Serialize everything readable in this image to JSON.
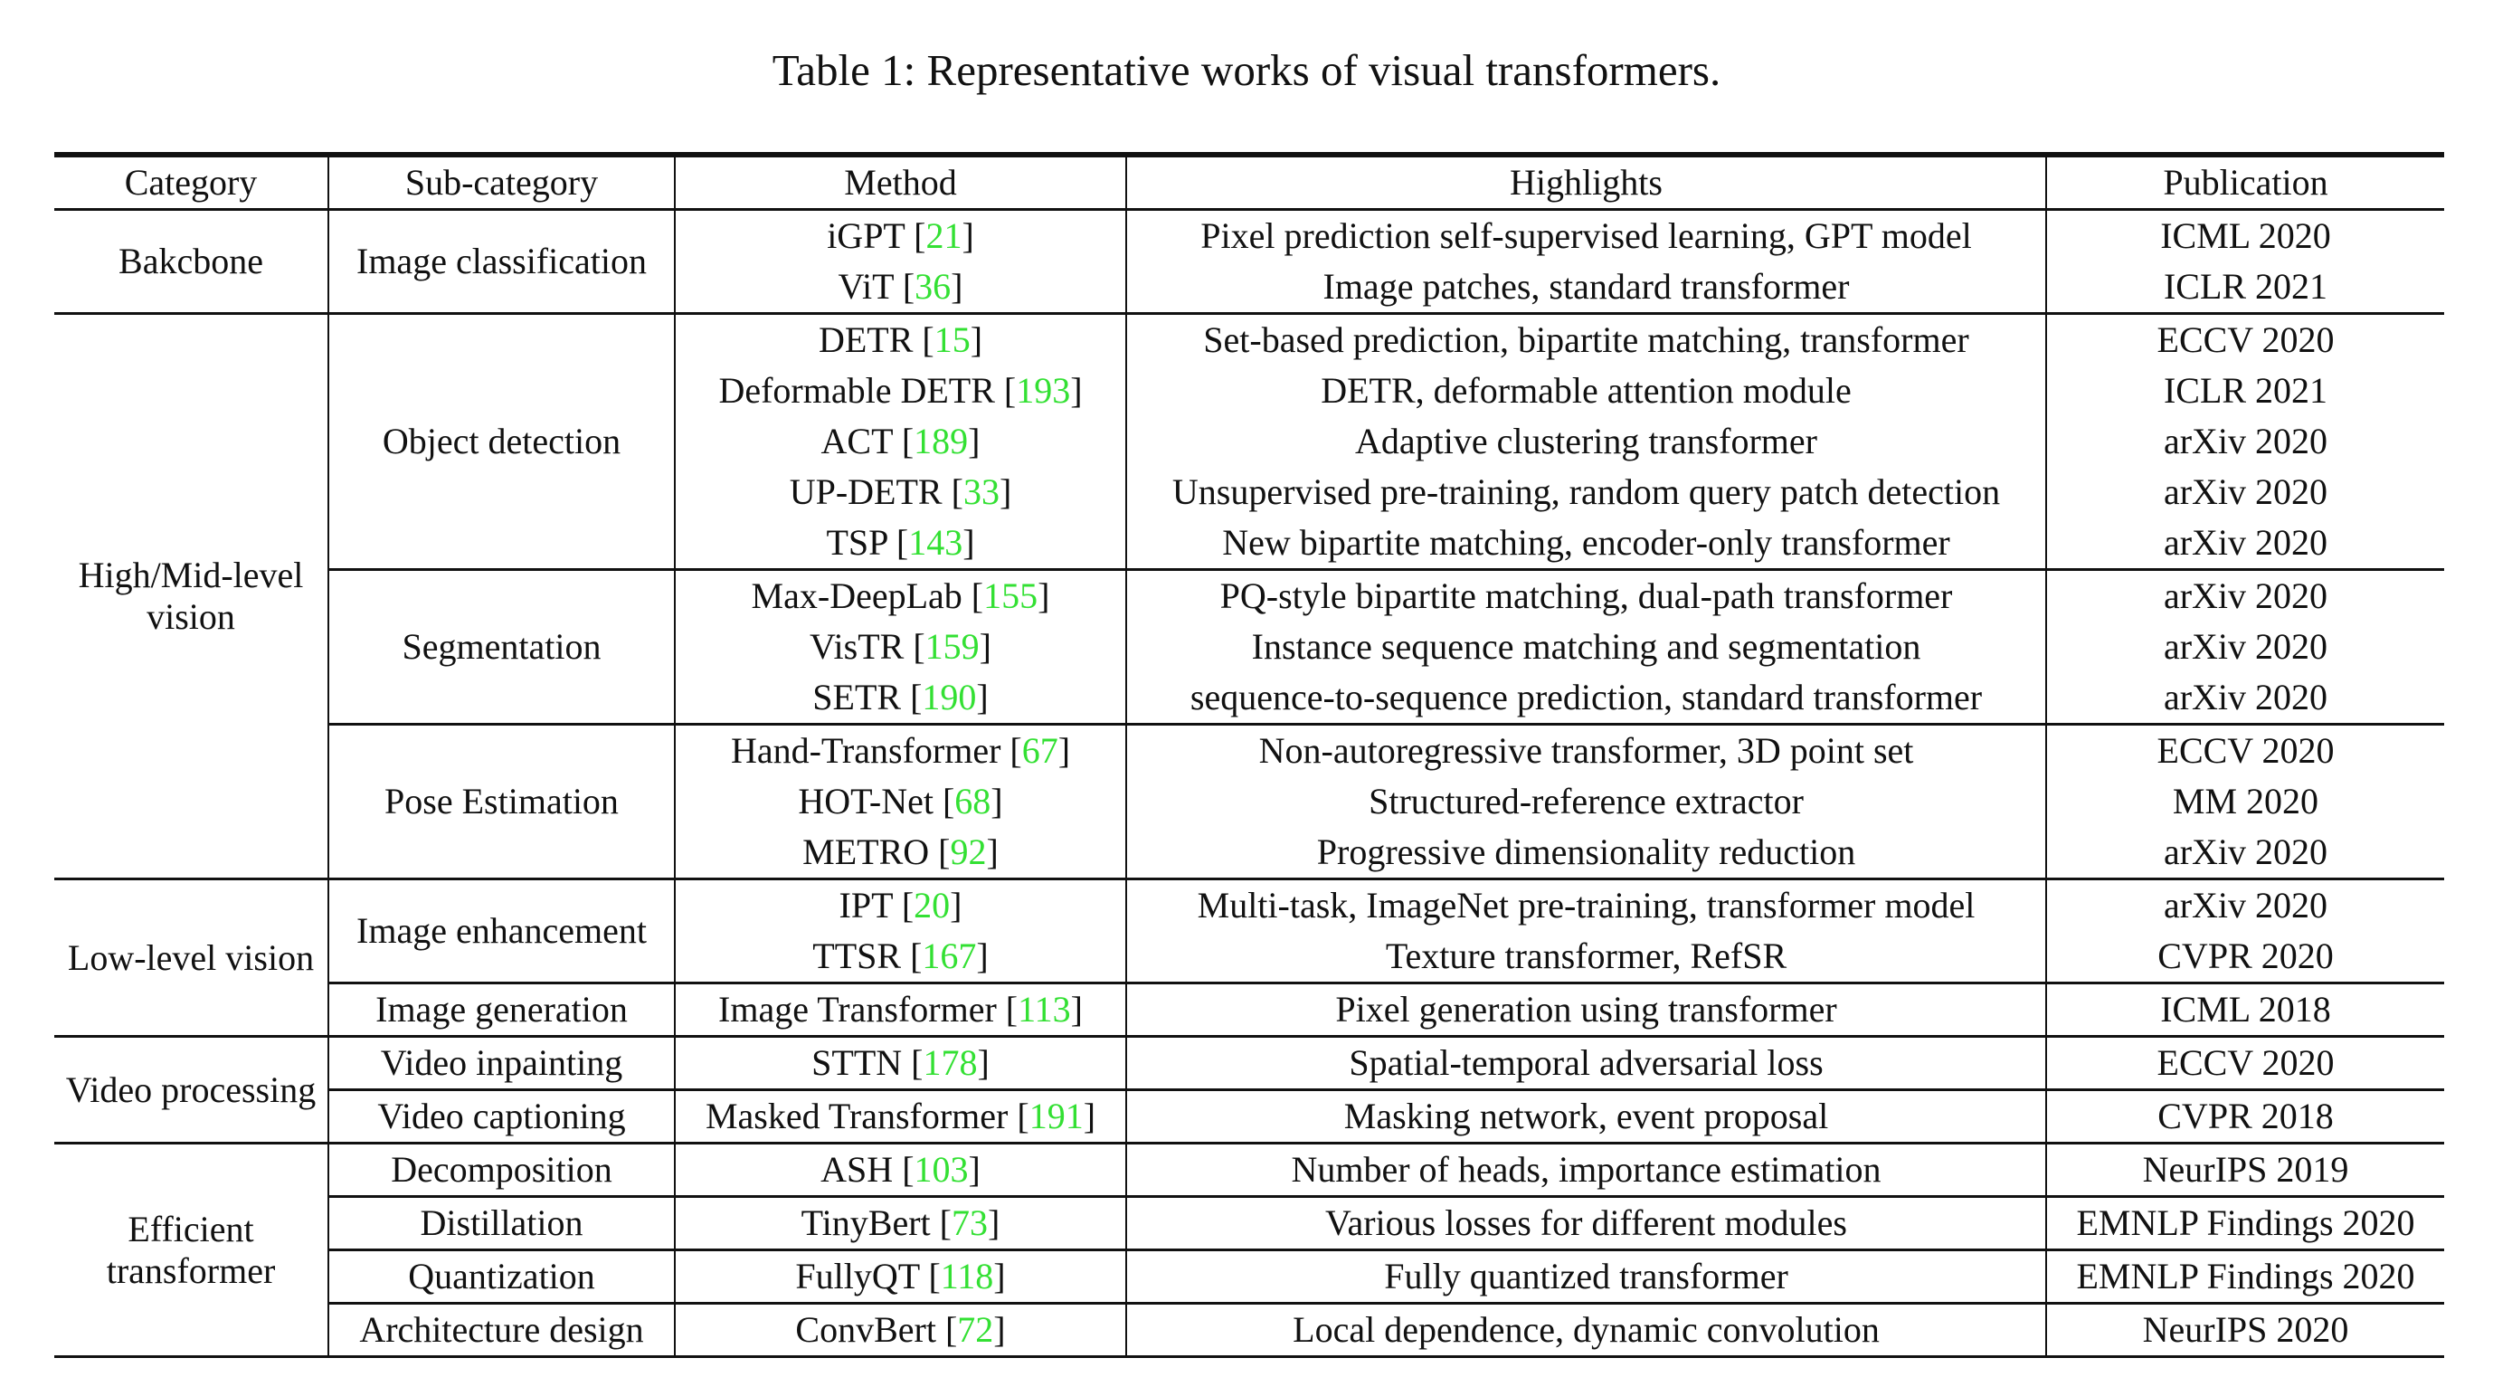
{
  "caption": "Table 1: Representative works of visual transformers.",
  "headers": {
    "category": "Category",
    "subcategory": "Sub-category",
    "method": "Method",
    "highlights": "Highlights",
    "publication": "Publication"
  },
  "categories": {
    "backbone": "Bakcbone",
    "highmid": "High/Mid-level vision",
    "lowlevel": "Low-level vision",
    "video": "Video processing",
    "efficient": "Efficient transformer"
  },
  "subcategories": {
    "image_classification": "Image classification",
    "object_detection": "Object detection",
    "segmentation": "Segmentation",
    "pose_estimation": "Pose Estimation",
    "image_enhancement": "Image enhancement",
    "image_generation": "Image generation",
    "video_inpainting": "Video inpainting",
    "video_captioning": "Video captioning",
    "decomposition": "Decomposition",
    "distillation": "Distillation",
    "quantization": "Quantization",
    "architecture_design": "Architecture design"
  },
  "rows": [
    {
      "method": "iGPT",
      "ref": "21",
      "highlights": "Pixel prediction self-supervised learning, GPT model",
      "publication": "ICML 2020"
    },
    {
      "method": "ViT",
      "ref": "36",
      "highlights": "Image patches, standard transformer",
      "publication": "ICLR 2021"
    },
    {
      "method": "DETR",
      "ref": "15",
      "highlights": "Set-based prediction, bipartite matching, transformer",
      "publication": "ECCV 2020"
    },
    {
      "method": "Deformable DETR",
      "ref": "193",
      "highlights": "DETR, deformable attention module",
      "publication": "ICLR 2021"
    },
    {
      "method": "ACT",
      "ref": "189",
      "highlights": "Adaptive clustering transformer",
      "publication": "arXiv 2020"
    },
    {
      "method": "UP-DETR",
      "ref": "33",
      "highlights": "Unsupervised pre-training, random query patch detection",
      "publication": "arXiv 2020"
    },
    {
      "method": "TSP",
      "ref": "143",
      "highlights": "New bipartite matching, encoder-only transformer",
      "publication": "arXiv 2020"
    },
    {
      "method": "Max-DeepLab",
      "ref": "155",
      "highlights": "PQ-style bipartite matching, dual-path transformer",
      "publication": "arXiv 2020"
    },
    {
      "method": "VisTR",
      "ref": "159",
      "highlights": "Instance sequence matching and segmentation",
      "publication": "arXiv 2020"
    },
    {
      "method": "SETR",
      "ref": "190",
      "highlights": "sequence-to-sequence prediction, standard transformer",
      "publication": "arXiv 2020"
    },
    {
      "method": "Hand-Transformer",
      "ref": "67",
      "highlights": "Non-autoregressive transformer, 3D point set",
      "publication": "ECCV 2020"
    },
    {
      "method": "HOT-Net",
      "ref": "68",
      "highlights": "Structured-reference extractor",
      "publication": "MM 2020"
    },
    {
      "method": "METRO",
      "ref": "92",
      "highlights": "Progressive dimensionality reduction",
      "publication": "arXiv 2020"
    },
    {
      "method": "IPT",
      "ref": "20",
      "highlights": "Multi-task, ImageNet pre-training, transformer model",
      "publication": "arXiv 2020"
    },
    {
      "method": "TTSR",
      "ref": "167",
      "highlights": "Texture transformer, RefSR",
      "publication": "CVPR 2020"
    },
    {
      "method": "Image Transformer",
      "ref": "113",
      "highlights": "Pixel generation using transformer",
      "publication": "ICML 2018"
    },
    {
      "method": "STTN",
      "ref": "178",
      "highlights": "Spatial-temporal adversarial loss",
      "publication": "ECCV 2020"
    },
    {
      "method": "Masked Transformer",
      "ref": "191",
      "highlights": "Masking network, event proposal",
      "publication": "CVPR 2018"
    },
    {
      "method": "ASH",
      "ref": "103",
      "highlights": "Number of heads, importance estimation",
      "publication": "NeurIPS 2019"
    },
    {
      "method": "TinyBert",
      "ref": "73",
      "highlights": "Various losses for different modules",
      "publication": "EMNLP Findings 2020"
    },
    {
      "method": "FullyQT",
      "ref": "118",
      "highlights": "Fully quantized transformer",
      "publication": "EMNLP Findings 2020"
    },
    {
      "method": "ConvBert",
      "ref": "72",
      "highlights": "Local dependence, dynamic convolution",
      "publication": "NeurIPS 2020"
    }
  ]
}
